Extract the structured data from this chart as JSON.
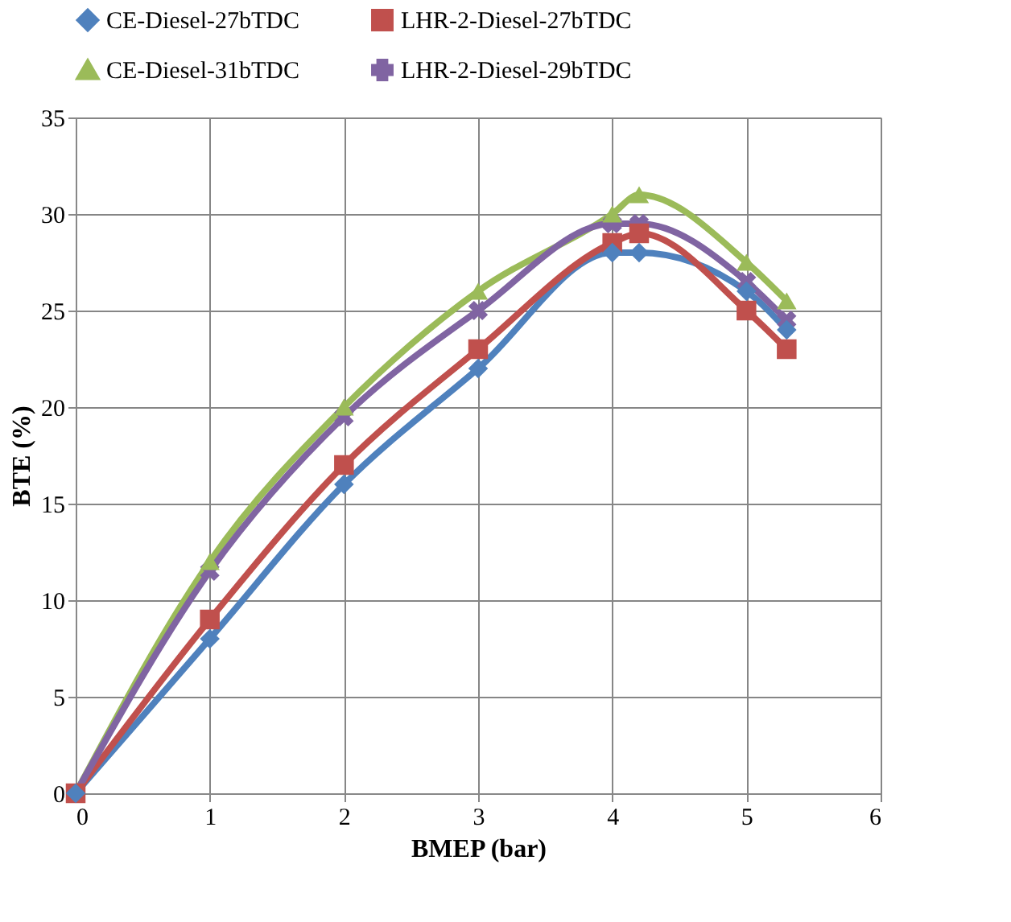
{
  "chart_data": {
    "type": "line",
    "xlabel": "BMEP (bar)",
    "ylabel": "BTE (%)",
    "x": [
      0,
      1,
      2,
      3,
      4,
      4.2,
      5,
      5.3
    ],
    "series": [
      {
        "name": "CE-Diesel-27bTDC",
        "color": "#4f81bd",
        "marker": "diamond",
        "values": [
          0,
          8,
          16,
          22,
          28,
          28,
          26,
          24
        ]
      },
      {
        "name": "LHR-2-Diesel-27bTDC",
        "color": "#c0504d",
        "marker": "square",
        "values": [
          0,
          9,
          17,
          23,
          28.5,
          29,
          25,
          23
        ]
      },
      {
        "name": "CE-Diesel-31bTDC",
        "color": "#9bbb59",
        "marker": "triangle",
        "values": [
          0,
          12,
          20,
          26,
          30,
          31,
          27.5,
          25.5
        ]
      },
      {
        "name": "LHR-2-Diesel-29bTDC",
        "color": "#8064a2",
        "marker": "cross",
        "values": [
          0,
          11.5,
          19.5,
          25,
          29.5,
          29.5,
          26.5,
          24.5
        ]
      }
    ],
    "xlim": [
      0,
      6
    ],
    "xticks": [
      0,
      1,
      2,
      3,
      4,
      5,
      6
    ],
    "ylim": [
      0,
      35
    ],
    "yticks": [
      0,
      5,
      10,
      15,
      20,
      25,
      30,
      35
    ],
    "grid": true,
    "legend": "top",
    "line_style": "solid"
  }
}
